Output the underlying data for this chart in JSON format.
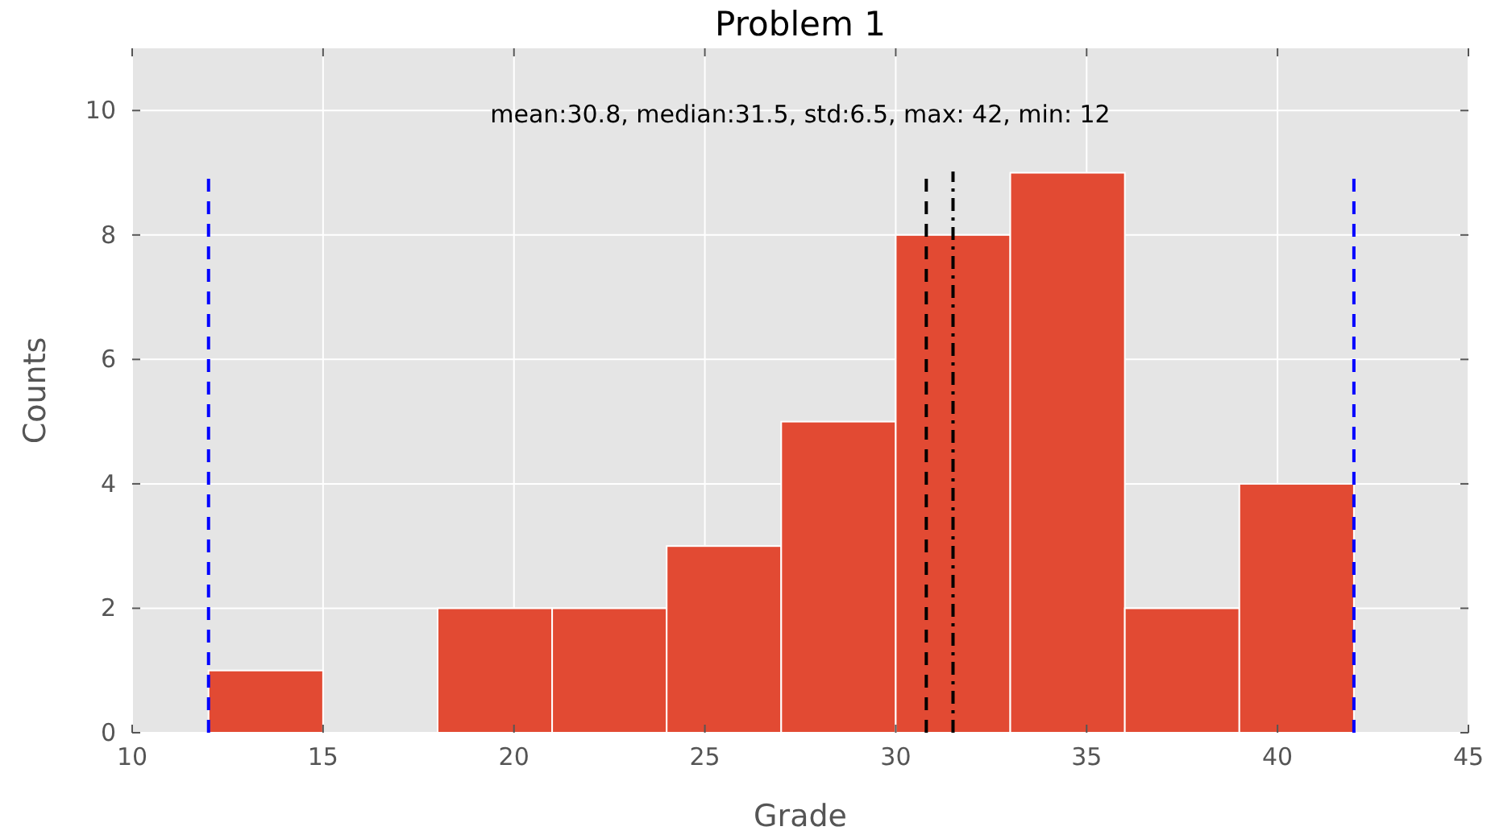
{
  "chart_data": {
    "type": "histogram",
    "title": "Problem 1",
    "xlabel": "Grade",
    "ylabel": "Counts",
    "bins": [
      12,
      15,
      18,
      21,
      24,
      27,
      30,
      33,
      36,
      39,
      42
    ],
    "values": [
      1,
      0,
      2,
      2,
      3,
      5,
      8,
      9,
      2,
      4
    ],
    "color": "#e24a33",
    "xlim": [
      10,
      45
    ],
    "xticks": [
      10,
      15,
      20,
      25,
      30,
      35,
      40,
      45
    ],
    "ylim": [
      0,
      11
    ],
    "yticks": [
      0,
      2,
      4,
      6,
      8,
      10
    ],
    "grid": true,
    "annotations": [
      "mean:30.8, median:31.5, std:6.5, max: 42, min: 12"
    ],
    "ref_lines": [
      {
        "axis": "x",
        "value": 12,
        "color": "#0000ff",
        "line_style": "dashed"
      },
      {
        "axis": "x",
        "value": 42,
        "color": "#0000ff",
        "line_style": "dashed"
      },
      {
        "axis": "x",
        "value": 30.8,
        "color": "#000000",
        "line_style": "dashed"
      },
      {
        "axis": "x",
        "value": 31.5,
        "color": "#000000",
        "line_style": "dashdot"
      }
    ]
  }
}
